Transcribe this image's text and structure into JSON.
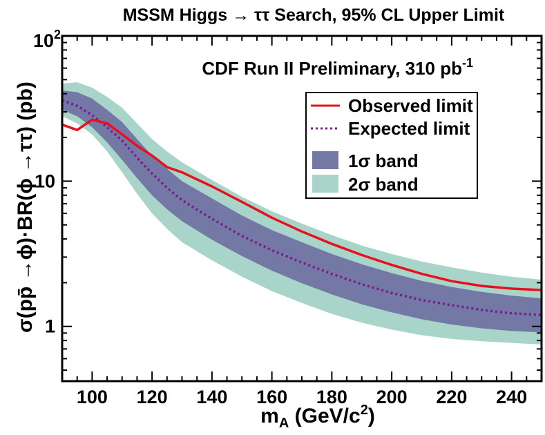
{
  "chart_data": {
    "type": "line",
    "title": "MSSM Higgs → ττ Search, 95% CL Upper Limit",
    "annotation": "CDF Run II Preliminary, 310 pb",
    "annotation_sup": "-1",
    "xlabel": "m",
    "xlabel_sub": "A",
    "xlabel_rest": " (GeV/c",
    "xlabel_sup": "2",
    "xlabel_end": ")",
    "ylabel": "σ(pp̄ →ϕ)·BR(ϕ →ττ) (pb)",
    "xlim": [
      90,
      250
    ],
    "ylim": [
      0.42,
      100
    ],
    "yscale": "log",
    "grid": false,
    "legend_placement": "top-right",
    "x_ticks": [
      100,
      120,
      140,
      160,
      180,
      200,
      220,
      240
    ],
    "x_tick_labels": [
      "100",
      "120",
      "140",
      "160",
      "180",
      "200",
      "220",
      "240"
    ],
    "y_major_ticks": [
      1,
      10,
      100
    ],
    "y_tick_labels": [
      {
        "value": 1,
        "base": "1",
        "sup": ""
      },
      {
        "value": 10,
        "base": "10",
        "sup": ""
      },
      {
        "value": 100,
        "base": "10",
        "sup": "2"
      }
    ],
    "x": [
      90,
      95,
      100,
      105,
      110,
      115,
      120,
      125,
      130,
      140,
      150,
      160,
      170,
      180,
      190,
      200,
      210,
      220,
      230,
      240,
      250
    ],
    "series": [
      {
        "name": "Observed limit",
        "style": "solid",
        "color": "#e8101a",
        "values": [
          24.5,
          22.5,
          26.5,
          25.0,
          21.0,
          17.5,
          15.0,
          12.5,
          11.5,
          9.2,
          7.2,
          5.6,
          4.5,
          3.7,
          3.1,
          2.65,
          2.3,
          2.05,
          1.9,
          1.82,
          1.78
        ]
      },
      {
        "name": "Expected limit",
        "style": "dotted",
        "color": "#7a1c8c",
        "values": [
          36.0,
          33.0,
          28.5,
          23.5,
          19.0,
          14.5,
          11.3,
          9.0,
          7.4,
          5.5,
          4.2,
          3.35,
          2.75,
          2.3,
          1.95,
          1.7,
          1.52,
          1.4,
          1.3,
          1.23,
          1.2
        ]
      }
    ],
    "bands": [
      {
        "name": "2σ band",
        "color": "#a9d4ca",
        "upper": [
          47.0,
          48.0,
          44.0,
          38.0,
          32.0,
          25.0,
          19.5,
          16.0,
          13.5,
          10.2,
          7.8,
          6.2,
          5.1,
          4.25,
          3.6,
          3.15,
          2.8,
          2.55,
          2.35,
          2.2,
          2.1
        ],
        "lower": [
          28.0,
          25.0,
          21.0,
          16.0,
          11.5,
          8.2,
          6.0,
          4.7,
          3.8,
          2.85,
          2.2,
          1.75,
          1.45,
          1.22,
          1.06,
          0.95,
          0.87,
          0.82,
          0.79,
          0.77,
          0.75
        ]
      },
      {
        "name": "1σ band",
        "color": "#7478a4",
        "upper": [
          42.0,
          41.0,
          37.0,
          31.0,
          25.5,
          19.5,
          15.0,
          12.2,
          10.0,
          7.6,
          5.8,
          4.6,
          3.8,
          3.15,
          2.68,
          2.33,
          2.06,
          1.87,
          1.73,
          1.63,
          1.56
        ],
        "lower": [
          31.0,
          28.0,
          23.5,
          18.5,
          14.0,
          10.5,
          8.0,
          6.4,
          5.3,
          3.95,
          3.05,
          2.42,
          1.98,
          1.66,
          1.42,
          1.25,
          1.12,
          1.03,
          0.97,
          0.93,
          0.91
        ]
      }
    ],
    "legend": [
      {
        "label": "Observed limit",
        "kind": "line-solid",
        "color": "#e8101a"
      },
      {
        "label": "Expected limit",
        "kind": "line-dotted",
        "color": "#7a1c8c"
      },
      {
        "label": "1σ band",
        "kind": "box",
        "color": "#7478a4"
      },
      {
        "label": "2σ band",
        "kind": "box",
        "color": "#a9d4ca"
      }
    ]
  }
}
